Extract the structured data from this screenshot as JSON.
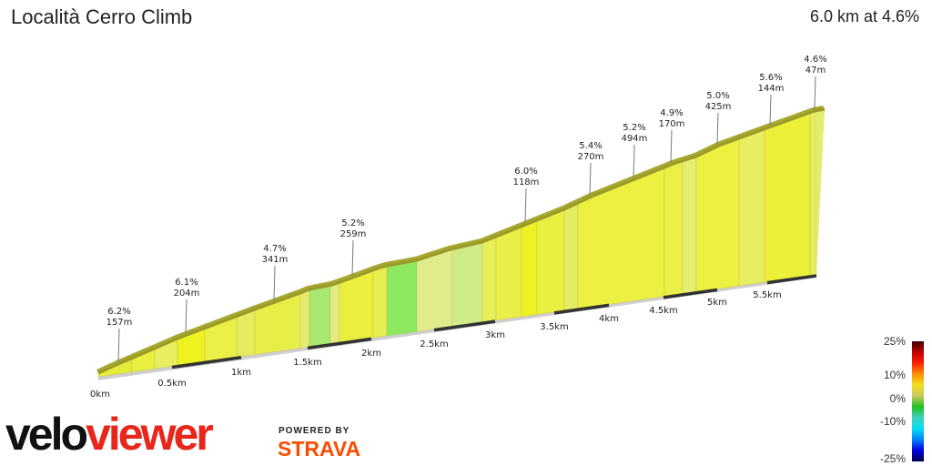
{
  "header": {
    "title": "Località Cerro Climb",
    "summary": "6.0 km at 4.6%"
  },
  "chart_data": {
    "type": "area",
    "title": "Località Cerro Climb",
    "total_distance_km": 6.0,
    "average_gradient_pct": 4.6,
    "distance_ticks": [
      "0km",
      "0.5km",
      "1km",
      "1.5km",
      "2km",
      "2.5km",
      "3km",
      "3.5km",
      "4km",
      "4.5km",
      "5km",
      "5.5km"
    ],
    "segments": [
      {
        "gradient": "6.2%",
        "length": "157m"
      },
      {
        "gradient": "6.1%",
        "length": "204m"
      },
      {
        "gradient": "4.7%",
        "length": "341m"
      },
      {
        "gradient": "5.2%",
        "length": "259m"
      },
      {
        "gradient": "6.0%",
        "length": "118m"
      },
      {
        "gradient": "5.4%",
        "length": "270m"
      },
      {
        "gradient": "5.2%",
        "length": "494m"
      },
      {
        "gradient": "4.9%",
        "length": "170m"
      },
      {
        "gradient": "5.0%",
        "length": "425m"
      },
      {
        "gradient": "5.6%",
        "length": "144m"
      },
      {
        "gradient": "4.6%",
        "length": "47m"
      }
    ],
    "legend": {
      "ticks": [
        "25%",
        "10%",
        "0%",
        "-10%",
        "-25%"
      ],
      "colors": [
        "#3a0000",
        "#c00000",
        "#ff2000",
        "#ff9000",
        "#f0e020",
        "#c8c860",
        "#20c020",
        "#40d0c0",
        "#00e0f0",
        "#0080ff",
        "#0000e0",
        "#000050"
      ]
    }
  },
  "branding": {
    "logo_part1": "velo",
    "logo_part2": "viewer",
    "powered_by": "POWERED BY",
    "strava": "STRAVA"
  }
}
